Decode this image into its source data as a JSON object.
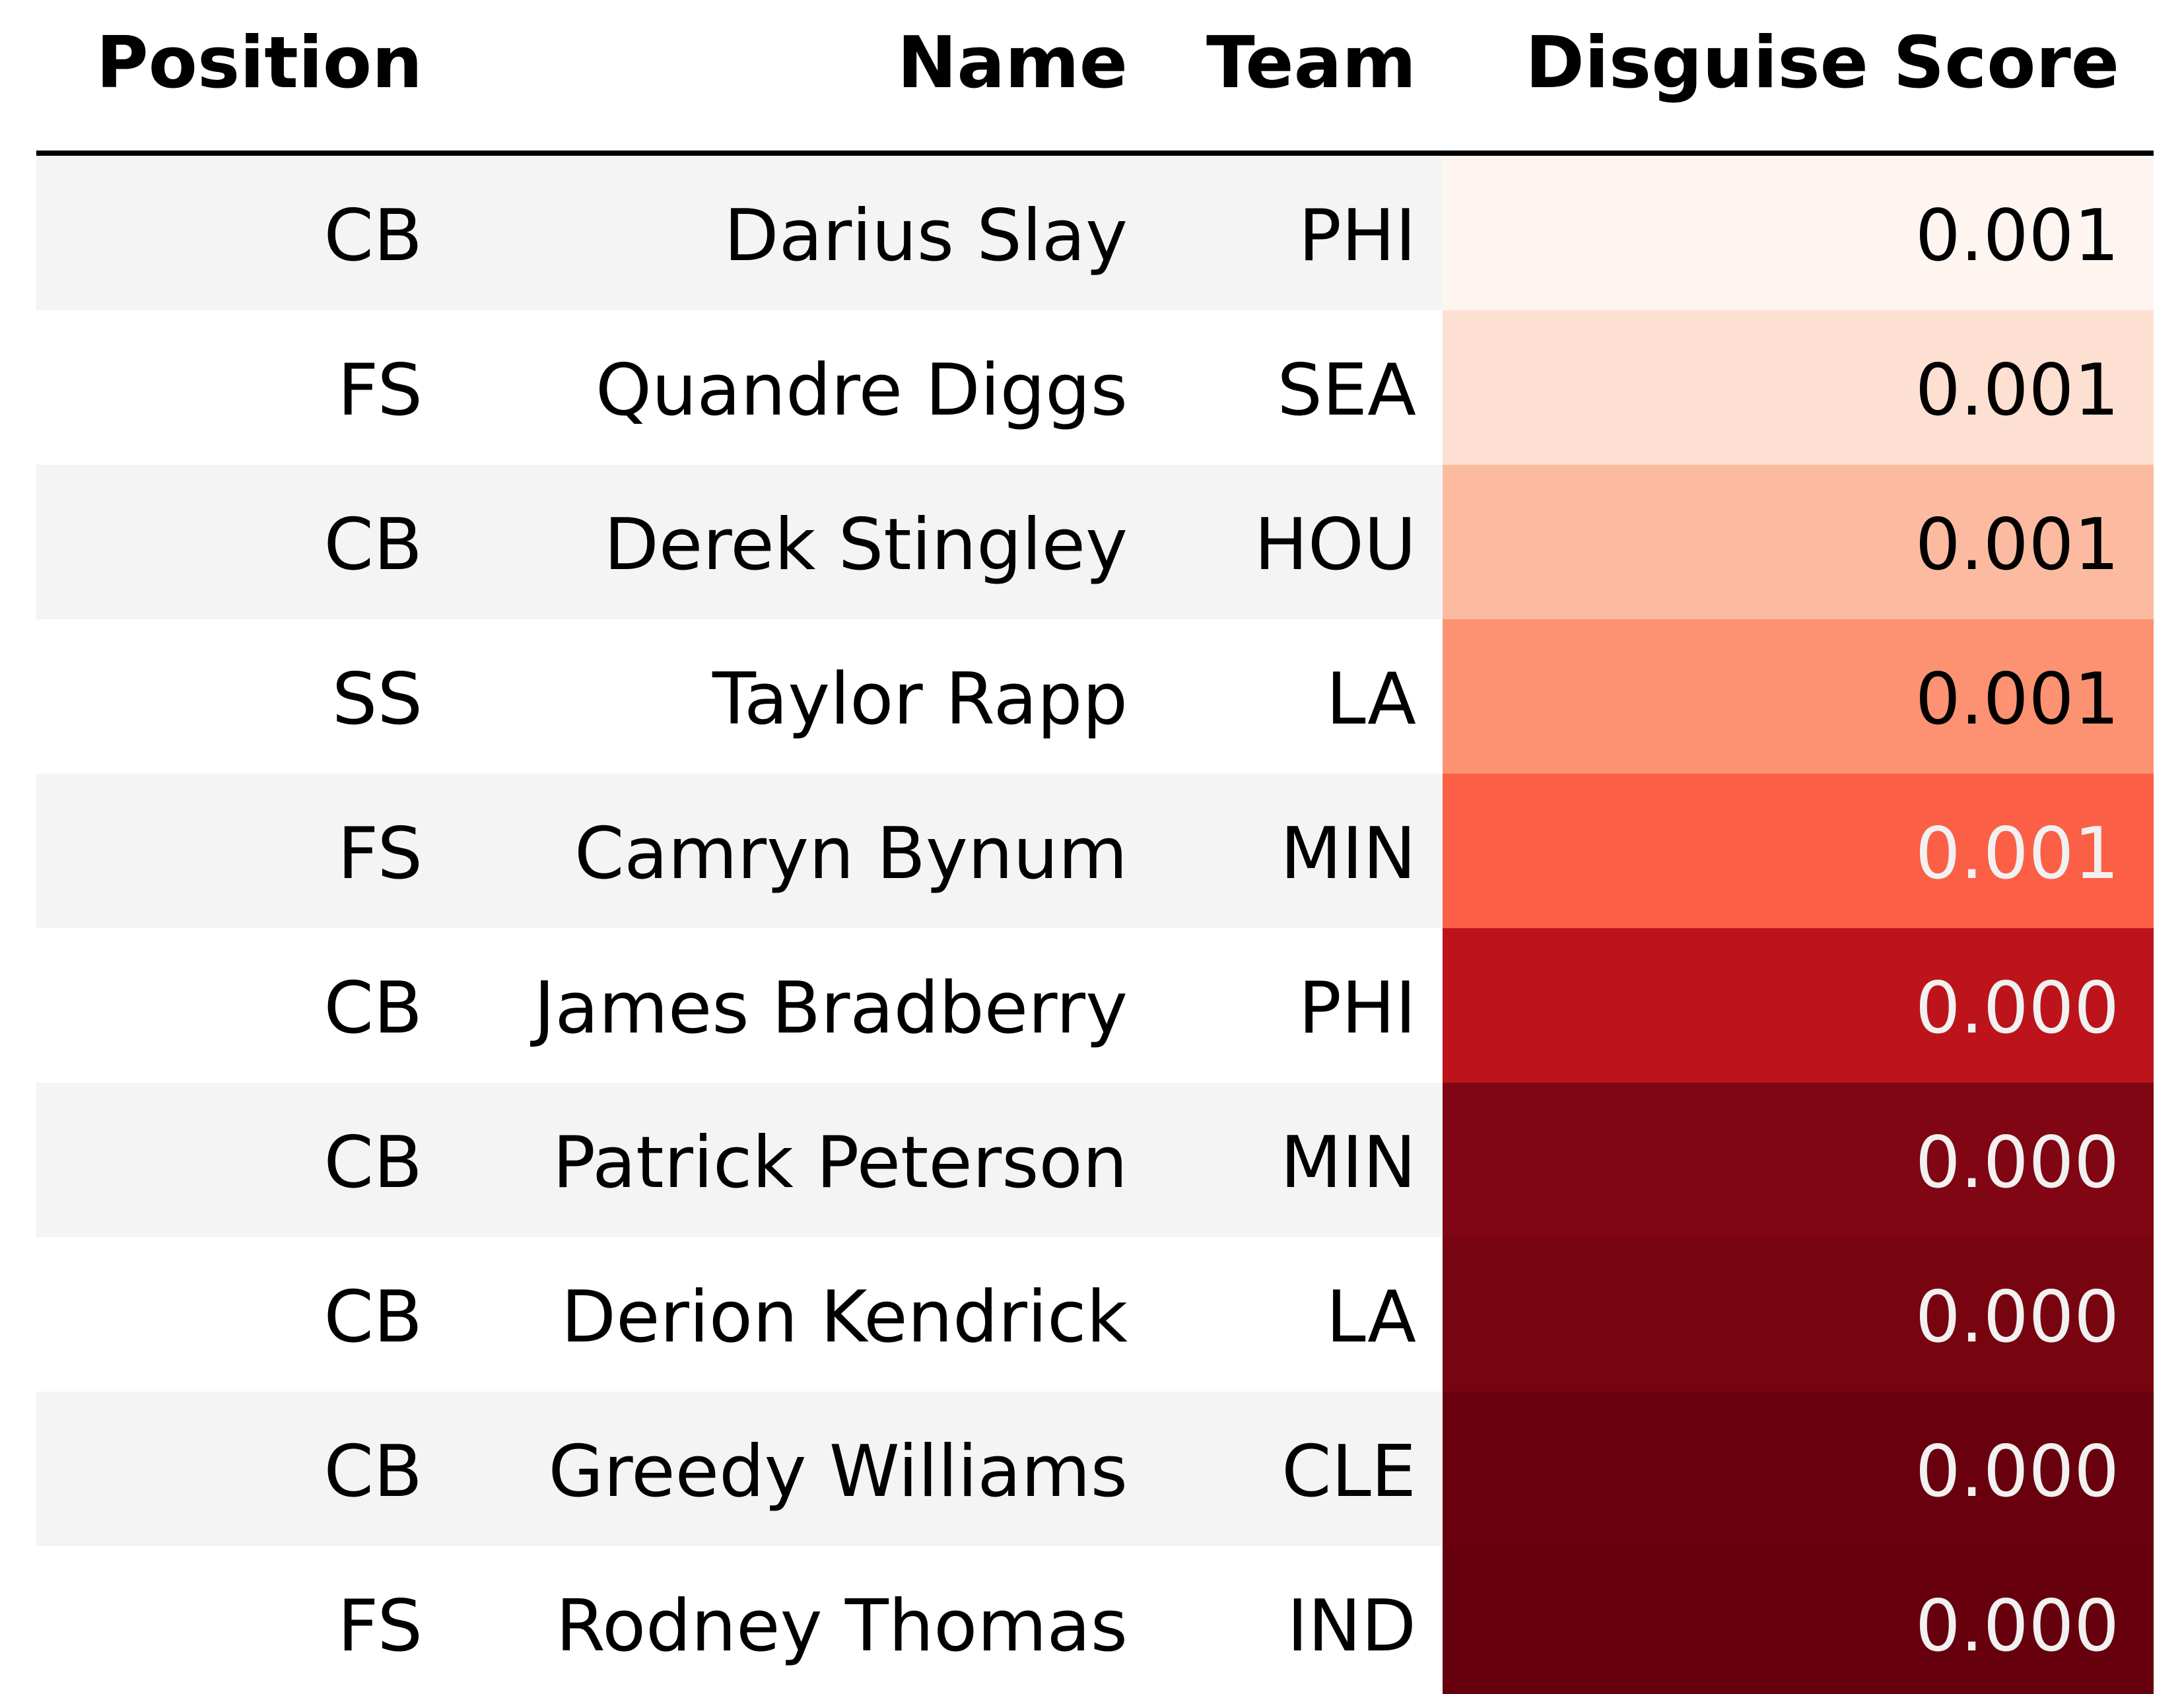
{
  "chart_data": {
    "type": "table",
    "columns": [
      "Position",
      "Name",
      "Team",
      "Disguise Score"
    ],
    "rows": [
      {
        "position": "CB",
        "name": "Darius Slay",
        "team": "PHI",
        "score": "0.001",
        "cell_color": "#fff5f0",
        "text_color": "#000000"
      },
      {
        "position": "FS",
        "name": "Quandre Diggs",
        "team": "SEA",
        "score": "0.001",
        "cell_color": "#fee0d2",
        "text_color": "#000000"
      },
      {
        "position": "CB",
        "name": "Derek Stingley",
        "team": "HOU",
        "score": "0.001",
        "cell_color": "#fcbba1",
        "text_color": "#000000"
      },
      {
        "position": "SS",
        "name": "Taylor Rapp",
        "team": "LA",
        "score": "0.001",
        "cell_color": "#fc9272",
        "text_color": "#000000"
      },
      {
        "position": "FS",
        "name": "Camryn Bynum",
        "team": "MIN",
        "score": "0.001",
        "cell_color": "#fb6046",
        "text_color": "#f1f1f1"
      },
      {
        "position": "CB",
        "name": "James Bradberry",
        "team": "PHI",
        "score": "0.000",
        "cell_color": "#bc141a",
        "text_color": "#f1f1f1"
      },
      {
        "position": "CB",
        "name": "Patrick Peterson",
        "team": "MIN",
        "score": "0.000",
        "cell_color": "#7f0612",
        "text_color": "#f1f1f1"
      },
      {
        "position": "CB",
        "name": "Derion Kendrick",
        "team": "LA",
        "score": "0.000",
        "cell_color": "#780410",
        "text_color": "#f1f1f1"
      },
      {
        "position": "CB",
        "name": "Greedy Williams",
        "team": "CLE",
        "score": "0.000",
        "cell_color": "#69000d",
        "text_color": "#f1f1f1"
      },
      {
        "position": "FS",
        "name": "Rodney Thomas",
        "team": "IND",
        "score": "0.000",
        "cell_color": "#67000d",
        "text_color": "#f1f1f1"
      }
    ],
    "colormap": "Reds (reversed)",
    "striped_row_color": "#f4f4f4"
  }
}
